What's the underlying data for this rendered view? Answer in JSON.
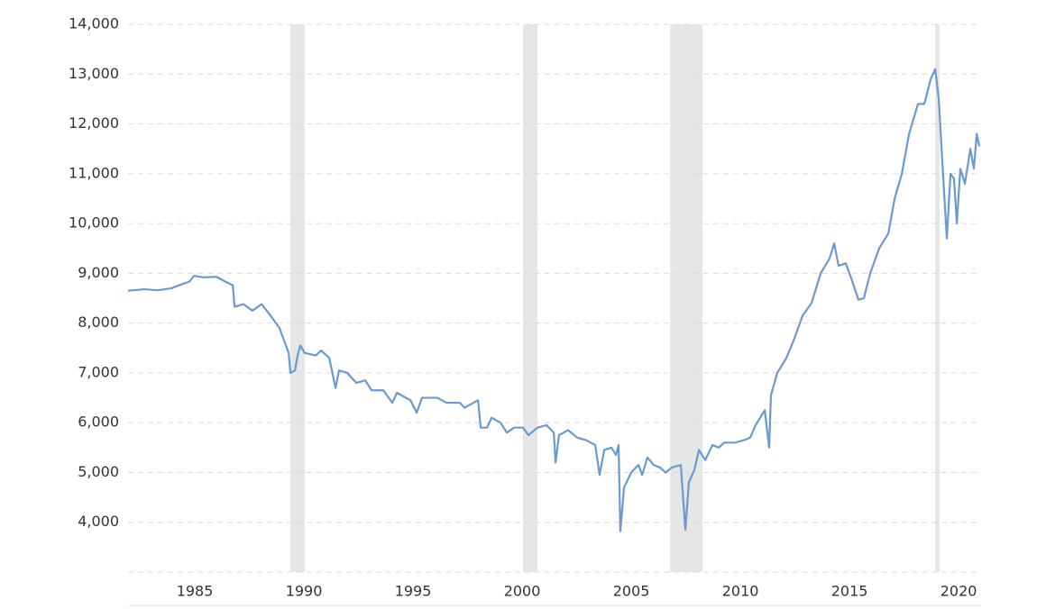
{
  "chart_data": {
    "type": "line",
    "x": [
      1981.94,
      1982.69,
      1983.31,
      1983.93,
      1984.34,
      1984.75,
      1984.96,
      1985.37,
      1985.99,
      1986.32,
      1986.74,
      1986.82,
      1987.23,
      1987.64,
      1988.06,
      1988.47,
      1988.88,
      1989.09,
      1989.3,
      1989.38,
      1989.59,
      1989.71,
      1989.83,
      1990.04,
      1990.54,
      1990.79,
      1991.16,
      1991.45,
      1991.61,
      1991.98,
      1992.4,
      1992.81,
      1993.1,
      1993.64,
      1994.05,
      1994.26,
      1994.88,
      1995.17,
      1995.41,
      1996.12,
      1996.53,
      1997.15,
      1997.36,
      1997.77,
      1997.98,
      1998.1,
      1998.39,
      1998.6,
      1999.01,
      1999.3,
      1999.63,
      2000.04,
      2000.29,
      2000.7,
      2001.12,
      2001.45,
      2001.53,
      2001.69,
      2002.11,
      2002.52,
      2002.93,
      2003.35,
      2003.55,
      2003.76,
      2004.09,
      2004.3,
      2004.42,
      2004.5,
      2004.67,
      2005.0,
      2005.33,
      2005.5,
      2005.74,
      2006.03,
      2006.32,
      2006.57,
      2006.86,
      2007.27,
      2007.48,
      2007.64,
      2007.89,
      2008.1,
      2008.39,
      2008.72,
      2009.01,
      2009.26,
      2009.75,
      2010.17,
      2010.45,
      2010.7,
      2011.12,
      2011.32,
      2011.4,
      2011.69,
      2012.11,
      2012.44,
      2012.85,
      2013.26,
      2013.68,
      2014.09,
      2014.3,
      2014.5,
      2014.83,
      2015.12,
      2015.41,
      2015.66,
      2015.95,
      2016.36,
      2016.78,
      2017.07,
      2017.4,
      2017.73,
      2018.14,
      2018.43,
      2018.72,
      2018.93,
      2019.09,
      2019.26,
      2019.46,
      2019.63,
      2019.79,
      2019.92,
      2020.08,
      2020.29,
      2020.54,
      2020.7,
      2020.83,
      2020.95
    ],
    "values": [
      8650,
      8680,
      8660,
      8700,
      8770,
      8830,
      8950,
      8920,
      8930,
      8850,
      8760,
      8330,
      8380,
      8250,
      8380,
      8150,
      7900,
      7650,
      7400,
      7000,
      7050,
      7350,
      7550,
      7400,
      7350,
      7450,
      7300,
      6700,
      7050,
      7000,
      6800,
      6850,
      6650,
      6650,
      6400,
      6600,
      6450,
      6200,
      6500,
      6500,
      6400,
      6400,
      6300,
      6400,
      6450,
      5900,
      5900,
      6100,
      6000,
      5800,
      5900,
      5900,
      5750,
      5900,
      5950,
      5800,
      5200,
      5750,
      5850,
      5700,
      5650,
      5550,
      4950,
      5450,
      5500,
      5350,
      5550,
      3820,
      4700,
      5000,
      5150,
      4950,
      5300,
      5150,
      5100,
      5000,
      5100,
      5150,
      3850,
      4800,
      5050,
      5450,
      5250,
      5550,
      5500,
      5600,
      5600,
      5650,
      5700,
      5950,
      6250,
      5500,
      6550,
      7000,
      7300,
      7650,
      8150,
      8400,
      9000,
      9300,
      9600,
      9150,
      9200,
      8850,
      8470,
      8500,
      9000,
      9500,
      9800,
      10500,
      11000,
      11800,
      12400,
      12400,
      12900,
      13100,
      12500,
      11200,
      9700,
      11000,
      10900,
      10000,
      11100,
      10800,
      11500,
      11100,
      11800,
      11550
    ],
    "color": "#6a9ad0",
    "shaded_ranges": [
      [
        1989.38,
        1990.04
      ],
      [
        2000.04,
        2000.7
      ],
      [
        2006.78,
        2008.27
      ],
      [
        2018.93,
        2019.13
      ]
    ],
    "shade_color": "#e6e6e6",
    "xlim": [
      1981.94,
      2021.03
    ],
    "xticks": [
      1985,
      1990,
      1995,
      2000,
      2005,
      2010,
      2015,
      2020
    ],
    "ylim": [
      3000,
      14000
    ],
    "yticks": [
      3000,
      {
        "value": 4000,
        "label": "4,000"
      },
      {
        "value": 5000,
        "label": "5,000"
      },
      {
        "value": 6000,
        "label": "6,000"
      },
      {
        "value": 7000,
        "label": "7,000"
      },
      {
        "value": 8000,
        "label": "8,000"
      },
      {
        "value": 9000,
        "label": "9,000"
      },
      {
        "value": 10000,
        "label": "10,000"
      },
      {
        "value": 11000,
        "label": "11,000"
      },
      {
        "value": 12000,
        "label": "12,000"
      },
      {
        "value": 13000,
        "label": "13,000"
      },
      {
        "value": 14000,
        "label": "14,000"
      }
    ],
    "grid": true
  }
}
